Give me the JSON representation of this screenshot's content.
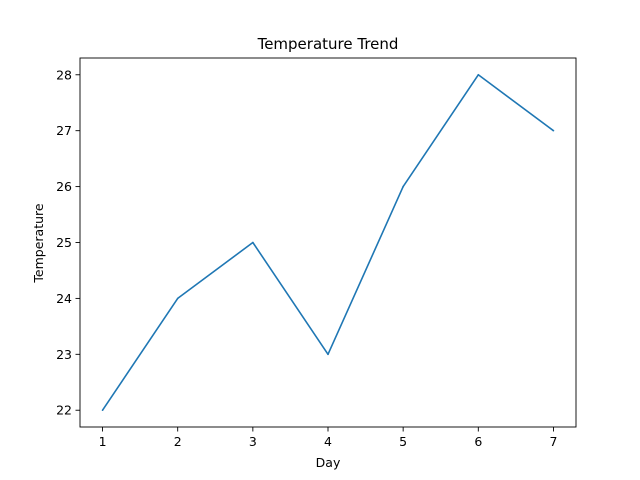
{
  "chart_data": {
    "type": "line",
    "title": "Temperature Trend",
    "xlabel": "Day",
    "ylabel": "Temperature",
    "x": [
      1,
      2,
      3,
      4,
      5,
      6,
      7
    ],
    "series": [
      {
        "values": [
          22,
          24,
          25,
          23,
          26,
          28,
          27
        ]
      }
    ],
    "xticks": [
      1,
      2,
      3,
      4,
      5,
      6,
      7
    ],
    "yticks": [
      22,
      23,
      24,
      25,
      26,
      27,
      28
    ],
    "xlim": [
      0.7,
      7.3
    ],
    "ylim": [
      21.7,
      28.3
    ],
    "grid": false,
    "line_color": "#1f77b4"
  }
}
